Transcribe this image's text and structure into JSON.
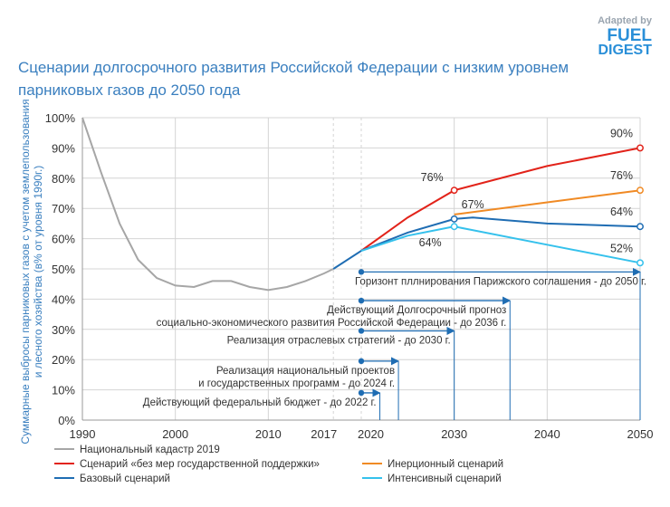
{
  "chart_data": {
    "type": "line",
    "title": [
      "Сценарии долгосрочного развития Российской Федерации с низким уровнем",
      "парниковых газов до 2050 года"
    ],
    "branding": {
      "adapted": "Adapted by",
      "top": "FUEL",
      "bottom": "DIGEST"
    },
    "ylabel": [
      "Суммарные выбросы парниковых газов с учетом землепользования",
      "и лесного хозяйства (в% от уровня 1990г.)"
    ],
    "xlim": [
      1990,
      2050
    ],
    "ylim": [
      0,
      100
    ],
    "xticks": [
      1990,
      2000,
      2010,
      2017,
      2020,
      2030,
      2040,
      2050
    ],
    "yticks": [
      {
        "value": 0,
        "label": "0%"
      },
      {
        "value": 10,
        "label": "10%"
      },
      {
        "value": 20,
        "label": "20%"
      },
      {
        "value": 30,
        "label": "30%"
      },
      {
        "value": 40,
        "label": "40%"
      },
      {
        "value": 50,
        "label": "50%"
      },
      {
        "value": 60,
        "label": "60%"
      },
      {
        "value": 70,
        "label": "70%"
      },
      {
        "value": 80,
        "label": "80%"
      },
      {
        "value": 90,
        "label": "90%"
      },
      {
        "value": 100,
        "label": "100%"
      }
    ],
    "grid": true,
    "series": [
      {
        "name": "Национальный кадастр 2019",
        "color": "#a6a6a6",
        "x": [
          1990,
          1992,
          1994,
          1996,
          1998,
          2000,
          2002,
          2004,
          2006,
          2008,
          2010,
          2012,
          2014,
          2016,
          2017
        ],
        "values": [
          100,
          82,
          65,
          53,
          47,
          44.5,
          44,
          46,
          46,
          44,
          43,
          44,
          46,
          48.5,
          50
        ],
        "value_labels": [
          null,
          null,
          null,
          null,
          null,
          null,
          null,
          null,
          null,
          null,
          null,
          null,
          null,
          null,
          null
        ]
      },
      {
        "name": "Сценарий «без мер государственной поддержки»",
        "color": "#e2231a",
        "x": [
          2020,
          2025,
          2030,
          2040,
          2050
        ],
        "values": [
          56,
          67,
          76,
          84,
          90
        ],
        "value_labels": [
          null,
          null,
          "76%",
          null,
          "90%"
        ]
      },
      {
        "name": "Базовый сценарий",
        "color": "#1f6db3",
        "x": [
          2017,
          2020,
          2025,
          2030,
          2032,
          2040,
          2050
        ],
        "values": [
          50,
          56,
          62,
          66.5,
          67,
          65,
          64
        ],
        "value_labels": [
          null,
          null,
          null,
          "67%",
          null,
          null,
          "64%"
        ]
      },
      {
        "name": "Инерционный сценарий",
        "color": "#f08a24",
        "x": [
          2030,
          2040,
          2050
        ],
        "values": [
          68,
          72,
          76
        ],
        "value_labels": [
          null,
          null,
          "76%"
        ]
      },
      {
        "name": "Интенсивный сценарий",
        "color": "#35c1ec",
        "x": [
          2020,
          2025,
          2030,
          2040,
          2050
        ],
        "values": [
          56,
          61,
          64,
          58,
          52
        ],
        "value_labels": [
          null,
          null,
          "64%",
          null,
          "52%"
        ]
      }
    ],
    "annotations": [
      {
        "label": [
          "Горизонт пллнирования Парижского соглашения - до 2050 г."
        ],
        "x": [
          2020,
          2050
        ],
        "y": 49
      },
      {
        "label": [
          "Действующий Долгосрочный прогноз",
          "социально-экономического развития Российской Федерации - до 2036 г."
        ],
        "x": [
          2020,
          2036
        ],
        "y": 39.5
      },
      {
        "label": [
          "Реализация отраслевых стратегий - до 2030 г."
        ],
        "x": [
          2020,
          2030
        ],
        "y": 29.5
      },
      {
        "label": [
          "Реализация национальный проектов",
          "и государственных программ - до 2024 г."
        ],
        "x": [
          2020,
          2024
        ],
        "y": 19.5
      },
      {
        "label": [
          "Действующий федеральный бюджет - до 2022 г."
        ],
        "x": [
          2020,
          2022
        ],
        "y": 9
      }
    ]
  }
}
